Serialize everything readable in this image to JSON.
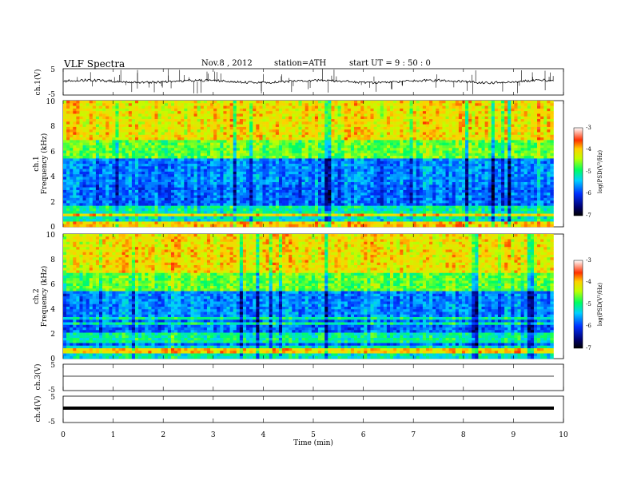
{
  "header": {
    "title": "VLF  Spectra",
    "date": "Nov.8  , 2012",
    "station": "station=ATH",
    "start_ut": "start  UT  =   9  : 50 : 0"
  },
  "chart_data": [
    {
      "type": "line",
      "panel": "ch1_waveform",
      "ylabel": "ch.1(V)",
      "yticks": [
        "5",
        "-5"
      ],
      "ylim": [
        -5,
        5
      ],
      "xlim": [
        0,
        10
      ],
      "series": [
        {
          "values_summary": "noisy waveform near -0.5 V with frequent spikes"
        }
      ]
    },
    {
      "type": "heatmap",
      "panel": "ch1_spectrogram",
      "ylabel_line1": "ch.1",
      "ylabel_line2": "Frequency  (kHz)",
      "yticks": [
        "10",
        "8",
        "6",
        "4",
        "2",
        "0"
      ],
      "ylim": [
        0,
        10
      ],
      "xlim": [
        0,
        9.8
      ],
      "colorbar": {
        "label": "log(PSD(V²/Hz)",
        "ticks": [
          "-3",
          "-4",
          "-5",
          "-6",
          "-7"
        ],
        "range": [
          -7,
          -3
        ]
      }
    },
    {
      "type": "heatmap",
      "panel": "ch2_spectrogram",
      "ylabel_line1": "ch.2",
      "ylabel_line2": "Frequency  (kHz)",
      "yticks": [
        "10",
        "8",
        "6",
        "4",
        "2",
        "0"
      ],
      "ylim": [
        0,
        10
      ],
      "xlim": [
        0,
        9.8
      ],
      "colorbar": {
        "label": "log(PSD(V²/Hz)",
        "ticks": [
          "-3",
          "-4",
          "-5",
          "-6",
          "-7"
        ],
        "range": [
          -7,
          -3
        ]
      }
    },
    {
      "type": "line",
      "panel": "ch3_waveform",
      "ylabel": "ch.3(V)",
      "yticks": [
        "5",
        "-5"
      ],
      "ylim": [
        -5,
        5
      ],
      "series": [
        {
          "values_summary": "flat near -0.5 V"
        }
      ]
    },
    {
      "type": "line",
      "panel": "ch4_waveform",
      "ylabel": "ch.4(V)",
      "yticks": [
        "5",
        "-5"
      ],
      "ylim": [
        -5,
        5
      ],
      "series": [
        {
          "values_summary": "thick band near -0.5 V"
        }
      ]
    }
  ],
  "x_axis": {
    "label": "Time  (min)",
    "ticks": [
      "0",
      "1",
      "2",
      "3",
      "4",
      "5",
      "6",
      "7",
      "8",
      "9",
      "10"
    ],
    "range": [
      0,
      10
    ]
  }
}
